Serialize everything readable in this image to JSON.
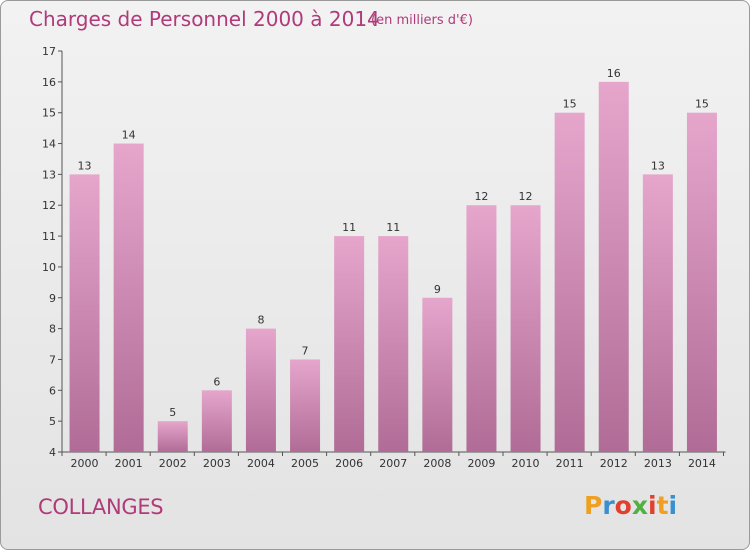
{
  "header": {
    "title": "Charges de Personnel 2000 à 2014",
    "subtitle": "(en milliers d'€)"
  },
  "footer": {
    "commune": "COLLANGES",
    "logo_text": "Proxiti",
    "logo_colors": [
      "#f0a020",
      "#3a8fd0",
      "#e04030",
      "#50b040",
      "#e04030",
      "#f0a020",
      "#3a8fd0"
    ]
  },
  "colors": {
    "bar_top": "#e6a6cc",
    "bar_bottom": "#b06c96",
    "accent": "#b03a7a"
  },
  "chart_data": {
    "type": "bar",
    "title": "Charges de Personnel 2000 à 2014",
    "subtitle": "(en milliers d'€)",
    "categories": [
      "2000",
      "2001",
      "2002",
      "2003",
      "2004",
      "2005",
      "2006",
      "2007",
      "2008",
      "2009",
      "2010",
      "2011",
      "2012",
      "2013",
      "2014"
    ],
    "values": [
      13,
      14,
      5,
      6,
      8,
      7,
      11,
      11,
      9,
      12,
      12,
      15,
      16,
      13,
      15
    ],
    "ylim": [
      4,
      17
    ],
    "yticks": [
      4,
      5,
      6,
      7,
      8,
      9,
      10,
      11,
      12,
      13,
      14,
      15,
      16,
      17
    ],
    "grid": false,
    "xlabel": "",
    "ylabel": ""
  }
}
